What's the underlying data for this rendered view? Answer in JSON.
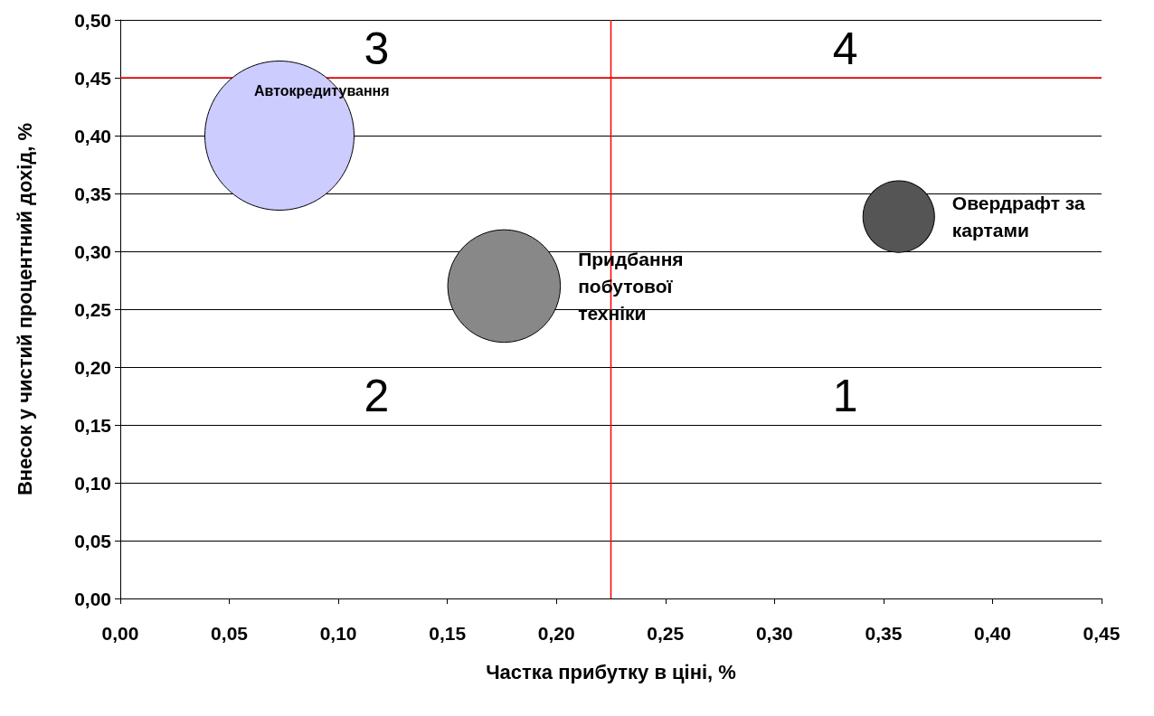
{
  "chart_data": {
    "type": "bubble",
    "xlabel": "Частка прибутку в ціні, %",
    "ylabel": "Внесок у чистий процентний дохід, %",
    "xlim": [
      0,
      0.45
    ],
    "ylim": [
      0,
      0.5
    ],
    "xticks": [
      {
        "value": 0,
        "label": "0,00"
      },
      {
        "value": 0.05,
        "label": "0,05"
      },
      {
        "value": 0.1,
        "label": "0,10"
      },
      {
        "value": 0.15,
        "label": "0,15"
      },
      {
        "value": 0.2,
        "label": "0,20"
      },
      {
        "value": 0.25,
        "label": "0,25"
      },
      {
        "value": 0.3,
        "label": "0,30"
      },
      {
        "value": 0.35,
        "label": "0,35"
      },
      {
        "value": 0.4,
        "label": "0,40"
      },
      {
        "value": 0.45,
        "label": "0,45"
      }
    ],
    "yticks": [
      {
        "value": 0,
        "label": "0,00"
      },
      {
        "value": 0.05,
        "label": "0,05"
      },
      {
        "value": 0.1,
        "label": "0,10"
      },
      {
        "value": 0.15,
        "label": "0,15"
      },
      {
        "value": 0.2,
        "label": "0,20"
      },
      {
        "value": 0.25,
        "label": "0,25"
      },
      {
        "value": 0.3,
        "label": "0,30"
      },
      {
        "value": 0.35,
        "label": "0,35"
      },
      {
        "value": 0.4,
        "label": "0,40"
      },
      {
        "value": 0.45,
        "label": "0,45"
      },
      {
        "value": 0.5,
        "label": "0,50"
      }
    ],
    "grid": "y",
    "legend": false,
    "marker": "circle",
    "series": [
      {
        "name": "Автокредитування",
        "color": "#ccccff",
        "x": [
          0.073
        ],
        "values": [
          0.4
        ],
        "sizes": [
          1
        ]
      },
      {
        "name": "Придбання побутової техніки",
        "color": "#888888",
        "x": [
          0.176
        ],
        "values": [
          0.27
        ],
        "sizes": [
          0.57
        ]
      },
      {
        "name": "Овердрафт за картами",
        "color": "#555555",
        "x": [
          0.357
        ],
        "values": [
          0.33
        ],
        "sizes": [
          0.23
        ]
      }
    ],
    "ref_lines": [
      {
        "axis": "x",
        "value": 0.225,
        "label": null,
        "color": "#ff0000"
      },
      {
        "axis": "y",
        "value": 0.45,
        "label": null,
        "color": "#ff0000"
      }
    ],
    "annotations": [
      "3",
      "4",
      "2",
      "1"
    ]
  }
}
